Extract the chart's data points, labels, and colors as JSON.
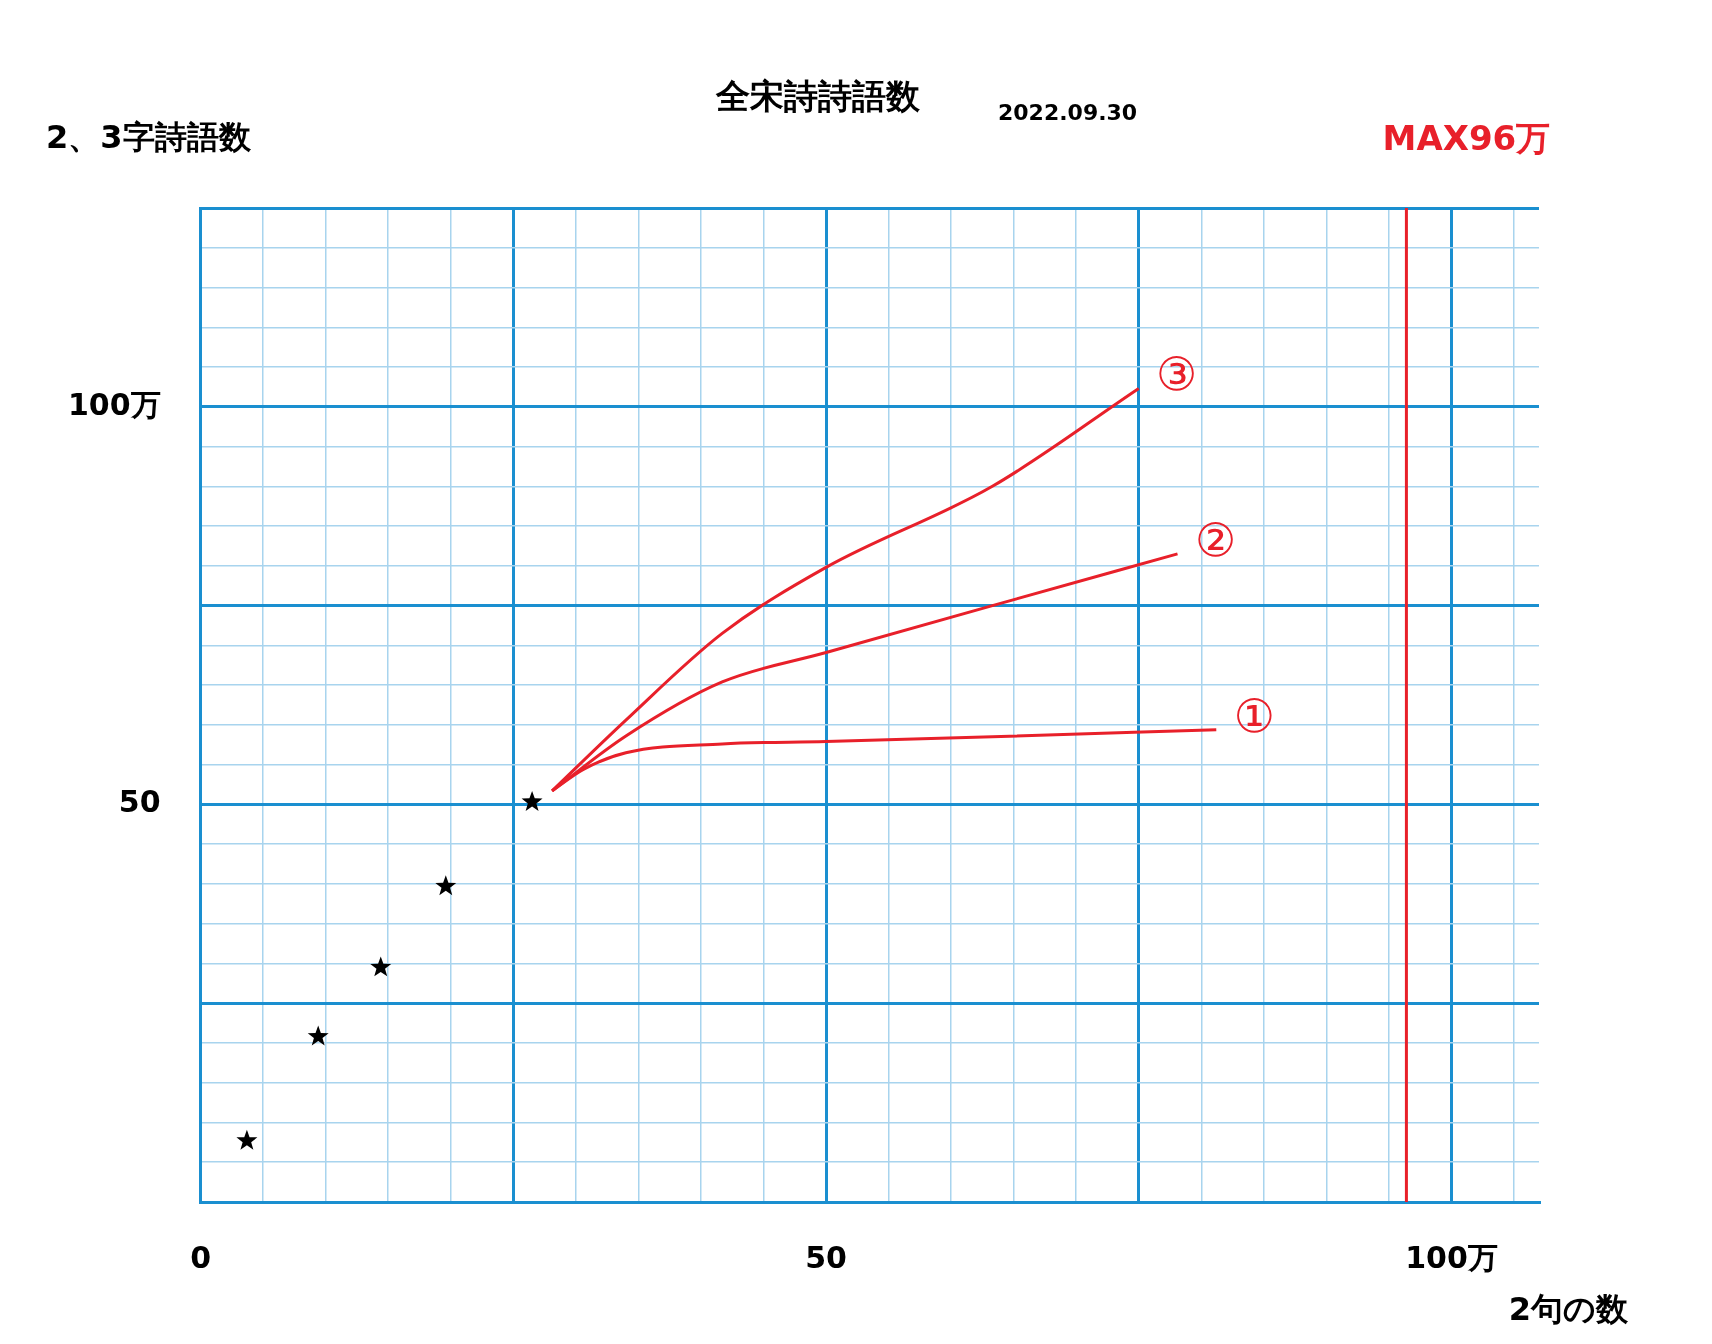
{
  "chart_data": {
    "type": "scatter",
    "title": "全宋詩詩語数",
    "subtitle": "2022.09.30",
    "xlabel": "2句の数",
    "ylabel": "2、3字詩語数",
    "xlim": [
      0,
      107
    ],
    "ylim": [
      0,
      125
    ],
    "xticks": [
      {
        "value": 0,
        "label": "0"
      },
      {
        "value": 5,
        "label": null
      },
      {
        "value": 10,
        "label": null
      },
      {
        "value": 15,
        "label": null
      },
      {
        "value": 20,
        "label": null
      },
      {
        "value": 25,
        "label": null
      },
      {
        "value": 30,
        "label": null
      },
      {
        "value": 35,
        "label": null
      },
      {
        "value": 40,
        "label": null
      },
      {
        "value": 45,
        "label": null
      },
      {
        "value": 50,
        "label": "50"
      },
      {
        "value": 55,
        "label": null
      },
      {
        "value": 60,
        "label": null
      },
      {
        "value": 65,
        "label": null
      },
      {
        "value": 70,
        "label": null
      },
      {
        "value": 75,
        "label": null
      },
      {
        "value": 80,
        "label": null
      },
      {
        "value": 85,
        "label": null
      },
      {
        "value": 90,
        "label": null
      },
      {
        "value": 95,
        "label": null
      },
      {
        "value": 100,
        "label": "100万"
      },
      {
        "value": 105,
        "label": null
      }
    ],
    "yticks": [
      {
        "value": 0,
        "label": null
      },
      {
        "value": 5,
        "label": null
      },
      {
        "value": 10,
        "label": null
      },
      {
        "value": 15,
        "label": null
      },
      {
        "value": 20,
        "label": null
      },
      {
        "value": 25,
        "label": null
      },
      {
        "value": 30,
        "label": null
      },
      {
        "value": 35,
        "label": null
      },
      {
        "value": 40,
        "label": null
      },
      {
        "value": 45,
        "label": null
      },
      {
        "value": 50,
        "label": "50"
      },
      {
        "value": 55,
        "label": null
      },
      {
        "value": 60,
        "label": null
      },
      {
        "value": 65,
        "label": null
      },
      {
        "value": 70,
        "label": null
      },
      {
        "value": 75,
        "label": null
      },
      {
        "value": 80,
        "label": null
      },
      {
        "value": 85,
        "label": null
      },
      {
        "value": 90,
        "label": null
      },
      {
        "value": 95,
        "label": null
      },
      {
        "value": 100,
        "label": "100万"
      },
      {
        "value": 105,
        "label": null
      },
      {
        "value": 110,
        "label": null
      },
      {
        "value": 115,
        "label": null
      },
      {
        "value": 120,
        "label": null
      },
      {
        "value": 125,
        "label": null
      }
    ],
    "grid": true,
    "legend": false,
    "series": [
      {
        "type": "scatter",
        "marker": "star",
        "color": "#000000",
        "x": [
          3.7,
          9.4,
          14.4,
          19.6,
          26.5
        ],
        "values": [
          7.7,
          20.8,
          29.5,
          39.7,
          50.3
        ]
      },
      {
        "type": "line",
        "marker": "none",
        "color": "#e8202a",
        "x": [
          28.1,
          30.6,
          34,
          41.7,
          50,
          63.3,
          81.2
        ],
        "values": [
          51.7,
          54.4,
          56.5,
          57.6,
          57.9,
          58.5,
          59.4
        ]
      },
      {
        "type": "line",
        "marker": "none",
        "color": "#e8202a",
        "x": [
          28.1,
          34,
          41.7,
          50,
          63.3,
          78.1
        ],
        "values": [
          51.7,
          58.6,
          65.4,
          69.1,
          75,
          81.5
        ]
      },
      {
        "type": "line",
        "marker": "none",
        "color": "#e8202a",
        "x": [
          28.1,
          34,
          41.7,
          50,
          63.3,
          75
        ],
        "values": [
          51.7,
          60.6,
          71.5,
          79.8,
          90,
          102.3
        ]
      }
    ],
    "ref_lines": [
      {
        "axis": "x",
        "value": 96.4,
        "label": "MAX96万",
        "color": "#e8202a"
      }
    ],
    "annotations": [
      {
        "text": "①",
        "x": 81.2,
        "y": 59.4
      },
      {
        "text": "②",
        "x": 78.1,
        "y": 81.5
      },
      {
        "text": "③",
        "x": 75,
        "y": 102.3
      }
    ]
  }
}
